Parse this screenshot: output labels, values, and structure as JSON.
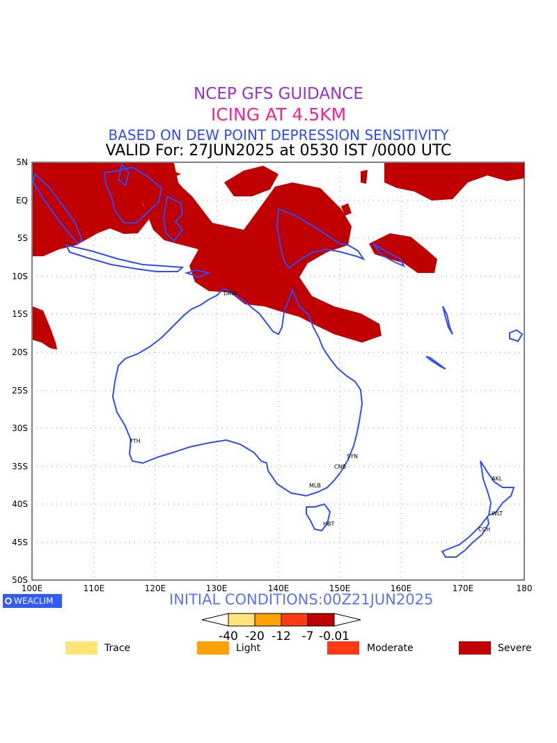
{
  "header": {
    "line1": "NCEP GFS GUIDANCE",
    "line2": "ICING AT 4.5KM",
    "line3": "BASED ON DEW POINT DEPRESSION SENSITIVITY",
    "line4": "VALID For: 27JUN2025 at 0530 IST /0000 UTC"
  },
  "map": {
    "lat_labels": [
      "5N",
      "EQ",
      "5S",
      "10S",
      "15S",
      "20S",
      "25S",
      "30S",
      "35S",
      "40S",
      "45S",
      "50S"
    ],
    "lon_labels": [
      "100E",
      "110E",
      "120E",
      "130E",
      "140E",
      "150E",
      "160E",
      "170E",
      "180"
    ],
    "stations": [
      "DRW",
      "PTH",
      "SYN",
      "CNB",
      "MLB",
      "HBT",
      "AKL",
      "WLT",
      "CCH"
    ],
    "colors": {
      "coast": "#2f4bff",
      "severe": "#c00000",
      "grid": "#999999"
    }
  },
  "footer": {
    "logo": "WEACLIM",
    "initial": "INITIAL CONDITIONS:00Z21JUN2025"
  },
  "colorbar": {
    "ticks": [
      "-40",
      "-20",
      "-12",
      "-7",
      "-0.01"
    ],
    "colors": [
      "#ffe47a",
      "#ffa200",
      "#ff3a14",
      "#c00000"
    ]
  },
  "legend": [
    {
      "label": "Trace",
      "color": "#ffe47a"
    },
    {
      "label": "Light",
      "color": "#ffa200"
    },
    {
      "label": "Moderate",
      "color": "#ff3a14"
    },
    {
      "label": "Severe",
      "color": "#c00000"
    }
  ]
}
